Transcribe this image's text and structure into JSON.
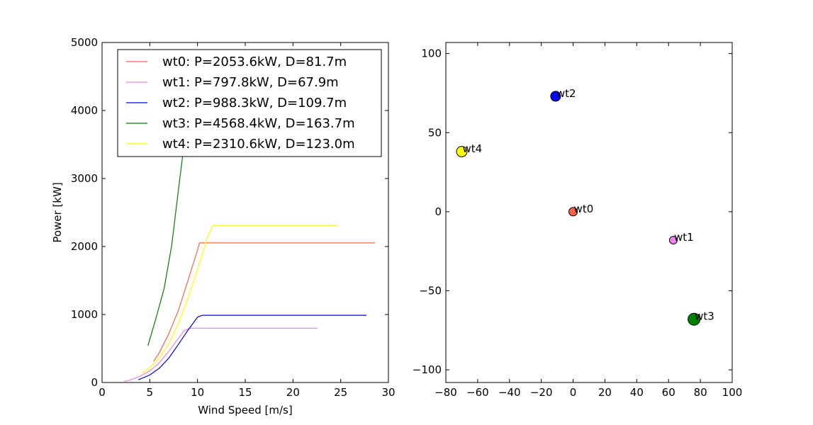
{
  "chart_data": [
    {
      "type": "line",
      "xlabel": "Wind Speed [m/s]",
      "ylabel": "Power [kW]",
      "xlim": [
        0,
        30
      ],
      "ylim": [
        0,
        5000
      ],
      "xticks": [
        0,
        5,
        10,
        15,
        20,
        25,
        30
      ],
      "yticks": [
        0,
        1000,
        2000,
        3000,
        4000,
        5000
      ],
      "legend_position": "top-right",
      "grid": false,
      "series": [
        {
          "name": "wt0: P=2053.6kW, D=81.7m",
          "color": "#ff6347",
          "x": [
            5.4,
            6,
            7,
            8,
            9,
            10,
            10.2,
            28.6
          ],
          "y": [
            310,
            440,
            720,
            1060,
            1500,
            1950,
            2053.6,
            2053.6
          ]
        },
        {
          "name": "wt1: P=797.8kW, D=67.9m",
          "color": "#ee82ee",
          "x": [
            2.3,
            3,
            4,
            5,
            6,
            7,
            8,
            8.6,
            9.2,
            22.6
          ],
          "y": [
            15,
            40,
            95,
            170,
            290,
            460,
            650,
            760,
            797.8,
            797.8
          ]
        },
        {
          "name": "wt2: P=988.3kW, D=109.7m",
          "color": "#0000ff",
          "x": [
            3.8,
            5,
            6,
            7,
            8,
            9,
            10,
            10.5,
            27.7
          ],
          "y": [
            40,
            110,
            210,
            360,
            560,
            770,
            960,
            988.3,
            988.3
          ]
        },
        {
          "name": "wt3: P=4568.4kW, D=163.7m",
          "color": "#008000",
          "x": [
            4.8,
            5.6,
            6.5,
            7.3,
            8.0,
            8.5,
            9.0,
            9.5
          ],
          "y": [
            540,
            920,
            1380,
            2020,
            2830,
            3400,
            4000,
            4568.4
          ]
        },
        {
          "name": "wt4: P=2310.6kW, D=123.0m",
          "color": "#ffff00",
          "x": [
            4.2,
            5,
            6,
            7,
            8,
            9,
            10,
            11,
            11.6,
            24.7
          ],
          "y": [
            140,
            220,
            360,
            570,
            870,
            1240,
            1660,
            2120,
            2310.6,
            2310.6
          ]
        }
      ]
    },
    {
      "type": "scatter",
      "xlabel": "",
      "ylabel": "",
      "xlim": [
        -80,
        100
      ],
      "ylim": [
        -108,
        107
      ],
      "xticks": [
        -80,
        -60,
        -40,
        -20,
        0,
        20,
        40,
        60,
        80,
        100
      ],
      "yticks": [
        -100,
        -50,
        0,
        50,
        100
      ],
      "grid": false,
      "points": [
        {
          "label": "wt0",
          "x": 0,
          "y": 0,
          "color": "#ff6347",
          "diameter_m": 81.7
        },
        {
          "label": "wt1",
          "x": 63,
          "y": -18,
          "color": "#ee82ee",
          "diameter_m": 67.9
        },
        {
          "label": "wt2",
          "x": -11,
          "y": 73,
          "color": "#0000ff",
          "diameter_m": 109.7
        },
        {
          "label": "wt3",
          "x": 76,
          "y": -68,
          "color": "#008000",
          "diameter_m": 163.7
        },
        {
          "label": "wt4",
          "x": -70,
          "y": 38,
          "color": "#ffff00",
          "diameter_m": 123.0
        }
      ]
    }
  ]
}
